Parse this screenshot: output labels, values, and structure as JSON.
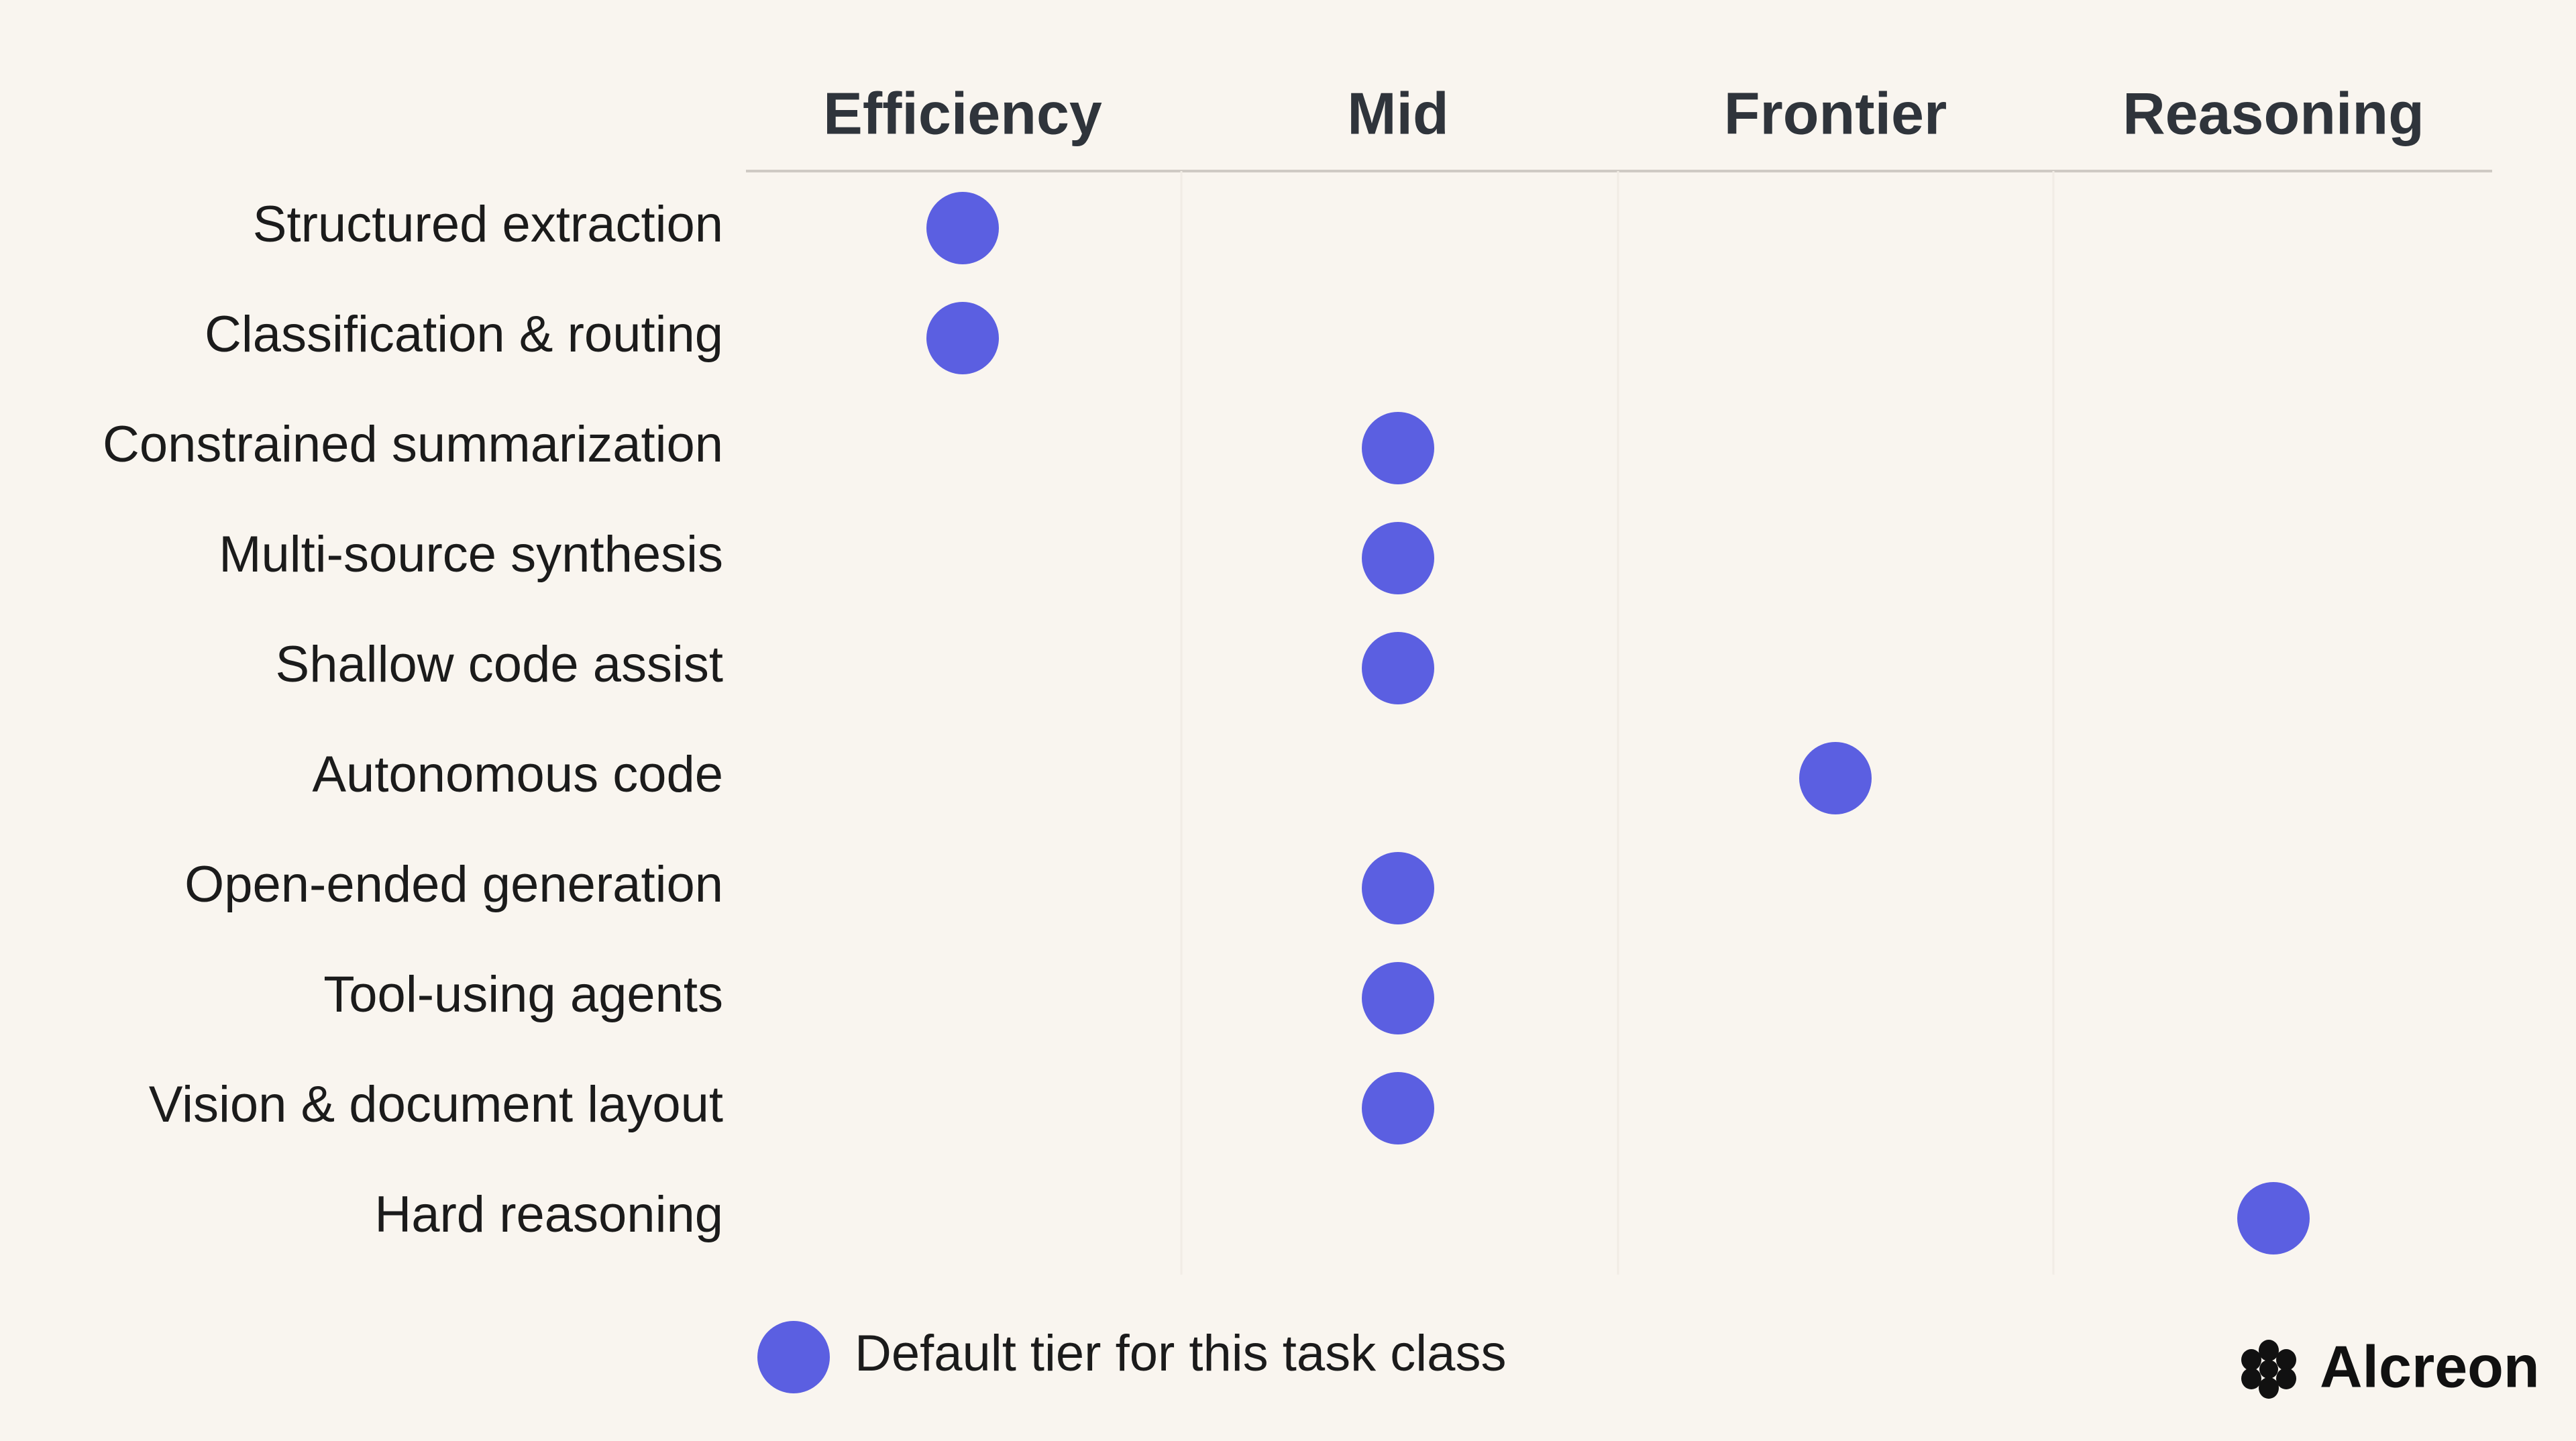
{
  "columns": [
    "Efficiency",
    "Mid",
    "Frontier",
    "Reasoning"
  ],
  "rows": [
    {
      "label": "Structured extraction",
      "default_column": 0
    },
    {
      "label": "Classification & routing",
      "default_column": 0
    },
    {
      "label": "Constrained summarization",
      "default_column": 1
    },
    {
      "label": "Multi-source synthesis",
      "default_column": 1
    },
    {
      "label": "Shallow code assist",
      "default_column": 1
    },
    {
      "label": "Autonomous code",
      "default_column": 2
    },
    {
      "label": "Open-ended generation",
      "default_column": 1
    },
    {
      "label": "Tool-using agents",
      "default_column": 1
    },
    {
      "label": "Vision & document layout",
      "default_column": 1
    },
    {
      "label": "Hard reasoning",
      "default_column": 3
    }
  ],
  "dot_color": "#5b5fe1",
  "legend": {
    "label": "Default tier for this task class"
  },
  "brand": "Alcreon"
}
